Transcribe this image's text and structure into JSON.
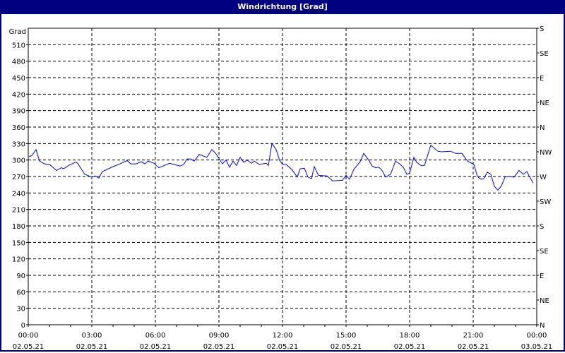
{
  "window": {
    "title": "Windrichtung [Grad]"
  },
  "colors": {
    "titlebar": "#000080",
    "line": "#0000ff",
    "grid": "#000000"
  },
  "chart_data": {
    "type": "line",
    "title": "Windrichtung [Grad]",
    "ylabel": "Grad",
    "ylim": [
      0,
      540
    ],
    "yticks": [
      0,
      30,
      60,
      90,
      120,
      150,
      180,
      210,
      240,
      270,
      300,
      330,
      360,
      390,
      420,
      450,
      480,
      510
    ],
    "y2ticks": [
      {
        "value": 0,
        "label": "N"
      },
      {
        "value": 45,
        "label": "NE"
      },
      {
        "value": 90,
        "label": "E"
      },
      {
        "value": 135,
        "label": "SE"
      },
      {
        "value": 180,
        "label": "S"
      },
      {
        "value": 225,
        "label": "SW"
      },
      {
        "value": 270,
        "label": "W"
      },
      {
        "value": 315,
        "label": "NW"
      },
      {
        "value": 360,
        "label": "N"
      },
      {
        "value": 405,
        "label": "NE"
      },
      {
        "value": 450,
        "label": "E"
      },
      {
        "value": 495,
        "label": "SE"
      },
      {
        "value": 540,
        "label": "S"
      }
    ],
    "xlim": [
      "02.05.21 00:00",
      "03.05.21 00:00"
    ],
    "xticks": [
      {
        "time": "00:00",
        "date": "02.05.21"
      },
      {
        "time": "03:00",
        "date": "02.05.21"
      },
      {
        "time": "06:00",
        "date": "02.05.21"
      },
      {
        "time": "09:00",
        "date": "02.05.21"
      },
      {
        "time": "12:00",
        "date": "02.05.21"
      },
      {
        "time": "15:00",
        "date": "02.05.21"
      },
      {
        "time": "18:00",
        "date": "02.05.21"
      },
      {
        "time": "21:00",
        "date": "02.05.21"
      },
      {
        "time": "00:00",
        "date": "03.05.21"
      }
    ],
    "grid": true,
    "series": [
      {
        "x": [
          "00:02",
          "00:10",
          "00:22",
          "00:32",
          "00:46",
          "01:00",
          "01:20",
          "01:34",
          "01:40",
          "01:54",
          "02:14",
          "02:20",
          "02:40",
          "03:00",
          "03:10",
          "03:20",
          "03:30",
          "04:00",
          "04:20",
          "04:40",
          "04:50",
          "05:06",
          "05:20",
          "05:30",
          "05:40",
          "05:56",
          "06:10",
          "06:40",
          "07:10",
          "07:20",
          "07:30",
          "07:40",
          "07:50",
          "08:04",
          "08:26",
          "08:40",
          "08:50",
          "09:10",
          "09:20",
          "09:30",
          "09:40",
          "09:50",
          "10:00",
          "10:10",
          "10:20",
          "10:32",
          "10:40",
          "10:54",
          "11:14",
          "11:20",
          "11:30",
          "11:42",
          "11:52",
          "12:00",
          "12:10",
          "12:26",
          "12:42",
          "12:50",
          "13:02",
          "13:12",
          "13:22",
          "13:30",
          "13:42",
          "14:06",
          "14:22",
          "14:50",
          "15:00",
          "15:10",
          "15:22",
          "15:40",
          "15:50",
          "16:04",
          "16:14",
          "16:24",
          "16:32",
          "16:40",
          "16:52",
          "17:06",
          "17:20",
          "17:32",
          "17:42",
          "17:52",
          "18:00",
          "18:12",
          "18:20",
          "18:32",
          "18:42",
          "19:00",
          "19:20",
          "19:30",
          "19:56",
          "20:10",
          "20:28",
          "20:44",
          "21:02",
          "21:12",
          "21:22",
          "21:30",
          "21:40",
          "21:50",
          "22:00",
          "22:10",
          "22:20",
          "22:30",
          "22:40",
          "22:56",
          "23:10",
          "23:22",
          "23:32",
          "23:40",
          "23:50"
        ],
        "y": [
          306,
          308,
          319,
          298,
          293,
          292,
          281,
          286,
          284,
          290,
          296,
          294,
          274,
          269,
          271,
          267,
          279,
          288,
          293,
          299,
          293,
          293,
          297,
          293,
          298,
          294,
          286,
          294,
          289,
          292,
          302,
          302,
          298,
          310,
          305,
          319,
          313,
          293,
          300,
          287,
          298,
          290,
          305,
          296,
          300,
          294,
          298,
          292,
          294,
          290,
          330,
          319,
          299,
          292,
          292,
          283,
          269,
          284,
          285,
          269,
          266,
          288,
          272,
          271,
          262,
          263,
          272,
          265,
          283,
          297,
          312,
          300,
          289,
          286,
          287,
          283,
          269,
          274,
          298,
          293,
          287,
          274,
          276,
          305,
          296,
          290,
          290,
          327,
          316,
          315,
          316,
          312,
          312,
          298,
          292,
          270,
          265,
          266,
          278,
          274,
          252,
          245,
          253,
          269,
          270,
          269,
          281,
          274,
          279,
          269,
          258
        ]
      }
    ]
  }
}
